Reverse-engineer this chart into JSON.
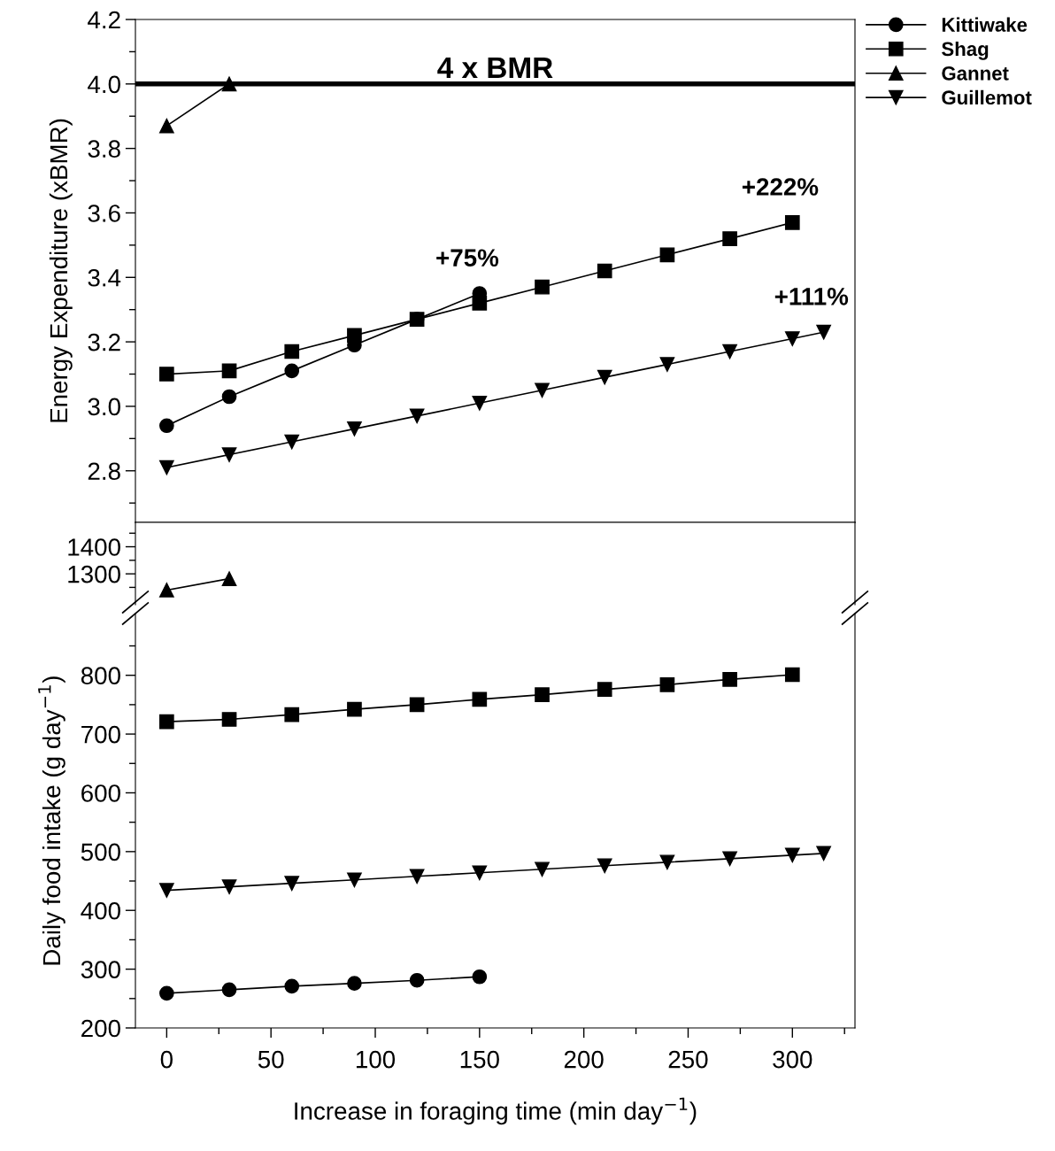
{
  "chart_data": [
    {
      "type": "line",
      "ylabel": "Energy Expenditure (xBMR)",
      "xlim": [
        -15,
        330
      ],
      "ylim": [
        2.64,
        4.2
      ],
      "xticks": [
        0,
        {
          "value": 25,
          "label": null
        },
        50,
        {
          "value": 75,
          "label": null
        },
        100,
        {
          "value": 125,
          "label": null
        },
        150,
        {
          "value": 175,
          "label": null
        },
        200,
        {
          "value": 225,
          "label": null
        },
        250,
        {
          "value": 275,
          "label": null
        },
        300,
        {
          "value": 325,
          "label": null
        }
      ],
      "yticks": [
        {
          "value": 2.7,
          "label": null
        },
        2.8,
        {
          "value": 2.9,
          "label": null
        },
        {
          "value": 3.0,
          "label": "3.0"
        },
        {
          "value": 3.1,
          "label": null
        },
        3.2,
        {
          "value": 3.3,
          "label": null
        },
        3.4,
        {
          "value": 3.5,
          "label": null
        },
        3.6,
        {
          "value": 3.7,
          "label": null
        },
        3.8,
        {
          "value": 3.9,
          "label": null
        },
        {
          "value": 4.0,
          "label": "4.0"
        },
        {
          "value": 4.1,
          "label": null
        },
        4.2
      ],
      "tick_labels": "y",
      "legend": "top right",
      "ref_lines": [
        {
          "axis": "y",
          "value": 4.0,
          "label": "4 x BMR",
          "color": "#000000"
        }
      ],
      "annotations": [
        {
          "text": "+75%",
          "x": 150,
          "y": 3.35
        },
        {
          "text": "+222%",
          "x": 300,
          "y": 3.57
        },
        {
          "text": "+111%",
          "x": 315,
          "y": 3.23
        }
      ],
      "series": [
        {
          "name": "Kittiwake",
          "color": "#000000",
          "marker": "circle",
          "x": [
            0,
            30,
            60,
            90,
            120,
            150
          ],
          "values": [
            2.94,
            3.03,
            3.11,
            3.19,
            3.27,
            3.35
          ]
        },
        {
          "name": "Shag",
          "color": "#000000",
          "marker": "square",
          "x": [
            0,
            30,
            60,
            90,
            120,
            150,
            180,
            210,
            240,
            270,
            300
          ],
          "values": [
            3.1,
            3.11,
            3.17,
            3.22,
            3.27,
            3.32,
            3.37,
            3.42,
            3.47,
            3.52,
            3.57
          ]
        },
        {
          "name": "Gannet",
          "color": "#000000",
          "marker": "triangle",
          "x": [
            0,
            30
          ],
          "values": [
            3.87,
            4.0
          ]
        },
        {
          "name": "Guillemot",
          "color": "#000000",
          "marker": "triangle_down",
          "x": [
            0,
            30,
            60,
            90,
            120,
            150,
            180,
            210,
            240,
            270,
            300,
            315
          ],
          "values": [
            2.81,
            2.85,
            2.89,
            2.93,
            2.97,
            3.01,
            3.05,
            3.09,
            3.13,
            3.17,
            3.21,
            3.23
          ]
        }
      ]
    },
    {
      "type": "line",
      "xlim": [
        -15,
        330
      ],
      "ylim": [
        1186,
        1490
      ],
      "yticks": [
        {
          "value": 1250,
          "label": null
        },
        1300,
        {
          "value": 1350,
          "label": null
        },
        1400,
        {
          "value": 1450,
          "label": null
        }
      ],
      "tick_labels": "y",
      "series": [
        {
          "color": "#000000",
          "marker": "triangle",
          "x": [
            0,
            30
          ],
          "values": [
            1240,
            1282
          ]
        }
      ]
    },
    {
      "type": "line",
      "xlabel": "Increase in foraging time (min day$^{−1}$)",
      "ylabel": "Daily food intake (g day$^{−1}$)",
      "xlim": [
        -15,
        330
      ],
      "ylim": [
        200,
        905
      ],
      "xticks": [
        0,
        {
          "value": 25,
          "label": null
        },
        50,
        {
          "value": 75,
          "label": null
        },
        100,
        {
          "value": 125,
          "label": null
        },
        150,
        {
          "value": 175,
          "label": null
        },
        200,
        {
          "value": 225,
          "label": null
        },
        250,
        {
          "value": 275,
          "label": null
        },
        300,
        {
          "value": 325,
          "label": null
        }
      ],
      "yticks": [
        200,
        {
          "value": 250,
          "label": null
        },
        300,
        {
          "value": 350,
          "label": null
        },
        400,
        {
          "value": 450,
          "label": null
        },
        500,
        {
          "value": 550,
          "label": null
        },
        600,
        {
          "value": 650,
          "label": null
        },
        700,
        {
          "value": 750,
          "label": null
        },
        800,
        {
          "value": 850,
          "label": null
        }
      ],
      "series": [
        {
          "color": "#000000",
          "marker": "circle",
          "x": [
            0,
            30,
            60,
            90,
            120,
            150
          ],
          "values": [
            259,
            265,
            271,
            276,
            281,
            287
          ]
        },
        {
          "color": "#000000",
          "marker": "square",
          "x": [
            0,
            30,
            60,
            90,
            120,
            150,
            180,
            210,
            240,
            270,
            300
          ],
          "values": [
            721,
            725,
            733,
            742,
            750,
            759,
            767,
            776,
            784,
            793,
            801
          ]
        },
        {
          "color": "#000000",
          "marker": "triangle_down",
          "x": [
            0,
            30,
            60,
            90,
            120,
            150,
            180,
            210,
            240,
            270,
            300,
            315
          ],
          "values": [
            434,
            440,
            446,
            452,
            458,
            464,
            470,
            476,
            482,
            488,
            494,
            497
          ]
        }
      ]
    }
  ]
}
